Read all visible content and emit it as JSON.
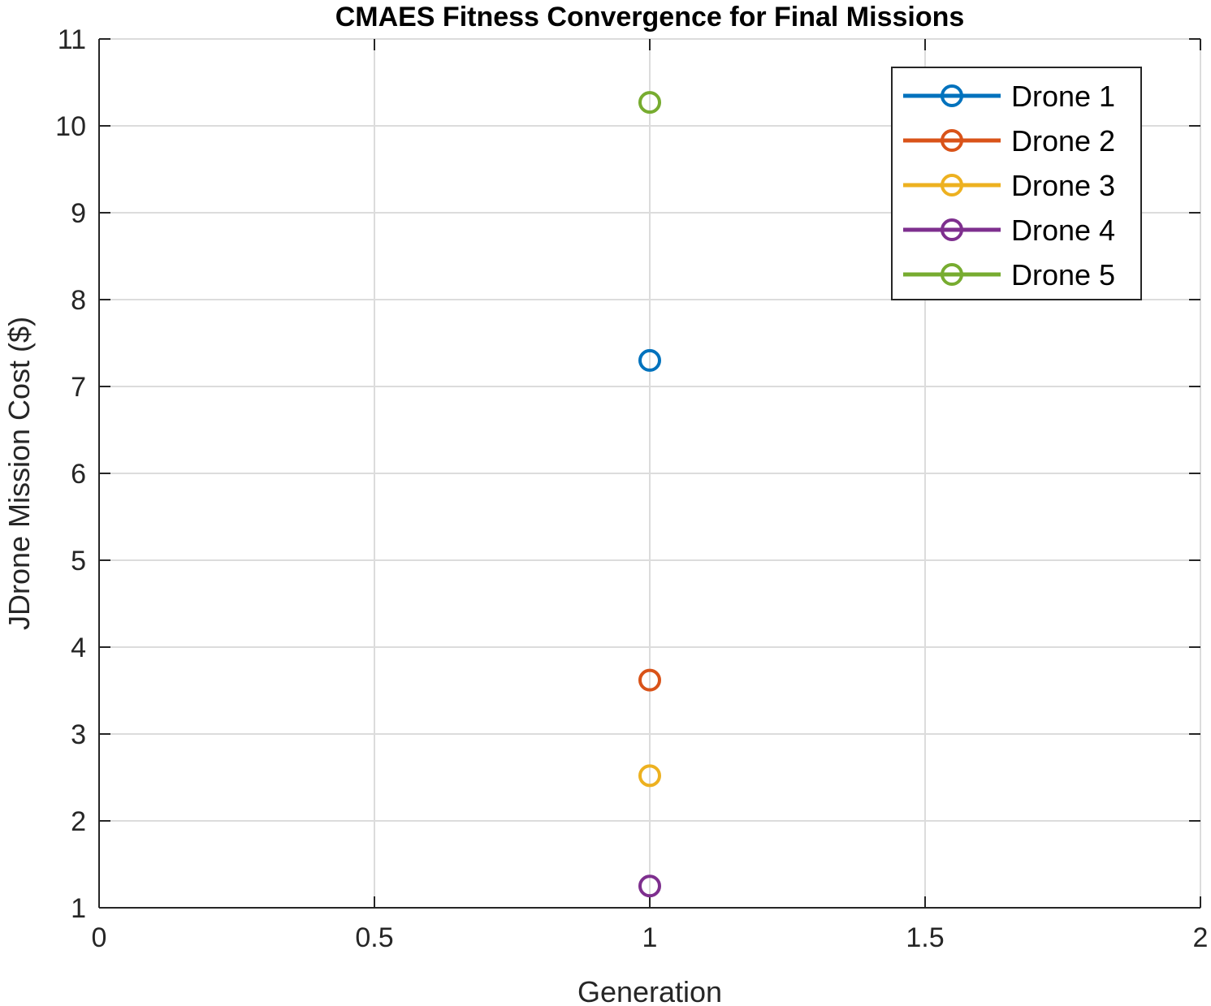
{
  "chart_data": {
    "type": "scatter",
    "title": "CMAES Fitness Convergence for Final Missions",
    "xlabel": "Generation",
    "ylabel": "JDrone Mission Cost ($)",
    "xlim": [
      0,
      2
    ],
    "ylim": [
      1,
      11
    ],
    "xticks": [
      0,
      0.5,
      1,
      1.5,
      2
    ],
    "xtick_labels": [
      "0",
      "0.5",
      "1",
      "1.5",
      "2"
    ],
    "yticks": [
      1,
      2,
      3,
      4,
      5,
      6,
      7,
      8,
      9,
      10,
      11
    ],
    "ytick_labels": [
      "1",
      "2",
      "3",
      "4",
      "5",
      "6",
      "7",
      "8",
      "9",
      "10",
      "11"
    ],
    "grid": true,
    "legend_position": "top-right",
    "marker": "open-circle",
    "series": [
      {
        "name": "Drone 1",
        "color": "#0072BD",
        "x": [
          1
        ],
        "y": [
          7.3
        ]
      },
      {
        "name": "Drone 2",
        "color": "#D95319",
        "x": [
          1
        ],
        "y": [
          3.62
        ]
      },
      {
        "name": "Drone 3",
        "color": "#EDB120",
        "x": [
          1
        ],
        "y": [
          2.52
        ]
      },
      {
        "name": "Drone 4",
        "color": "#7E2F8E",
        "x": [
          1
        ],
        "y": [
          1.25
        ]
      },
      {
        "name": "Drone 5",
        "color": "#77AC30",
        "x": [
          1
        ],
        "y": [
          10.27
        ]
      }
    ]
  }
}
